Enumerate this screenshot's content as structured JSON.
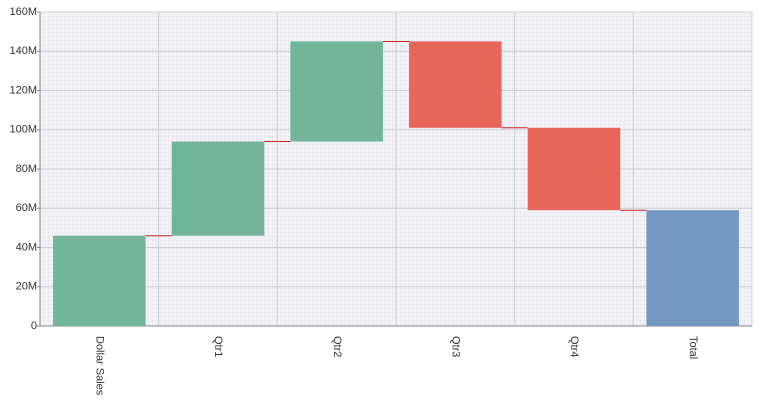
{
  "chart_data": {
    "type": "waterfall",
    "categories": [
      "Dollar Sales",
      "Qtr1",
      "Qtr2",
      "Qtr3",
      "Qtr4",
      "Total"
    ],
    "values": [
      46000000,
      48000000,
      51000000,
      -44000000,
      -42000000,
      59000000
    ],
    "colors": [
      "#73b59b",
      "#73b59b",
      "#73b59b",
      "#e8655a",
      "#e8655a",
      "#7598c0"
    ],
    "show_total": true,
    "connector_color": "#cc2222",
    "ylim": [
      0,
      160000000
    ],
    "yticks": [
      0,
      {
        "value": 20000000,
        "label": "20M"
      },
      {
        "value": 40000000,
        "label": "40M"
      },
      {
        "value": 60000000,
        "label": "60M"
      },
      {
        "value": 80000000,
        "label": "80M"
      },
      {
        "value": 100000000,
        "label": "100M"
      },
      {
        "value": 120000000,
        "label": "120M"
      },
      {
        "value": 140000000,
        "label": "140M"
      },
      {
        "value": 160000000,
        "label": "160M"
      }
    ],
    "grid": true
  }
}
